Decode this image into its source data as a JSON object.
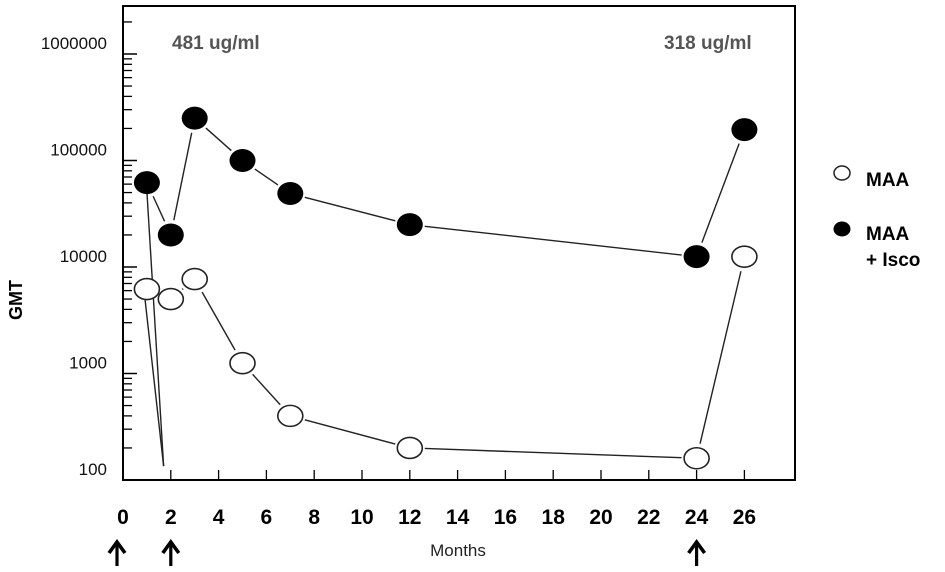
{
  "chart_data": {
    "type": "line",
    "title": "",
    "xlabel": "Months",
    "ylabel": "GMT",
    "yscale": "log",
    "ylim": [
      100,
      1000000
    ],
    "xlim": [
      0,
      28
    ],
    "x_ticks": [
      0,
      2,
      4,
      6,
      8,
      10,
      12,
      14,
      16,
      18,
      20,
      22,
      24,
      26
    ],
    "y_tick_labels": [
      "100",
      "1000",
      "10000",
      "100000",
      "1000000"
    ],
    "grid": false,
    "legend_position": "right",
    "annotations": [
      {
        "text": "481 ug/ml",
        "x": 4,
        "position": "top-left"
      },
      {
        "text": "318 ug/ml",
        "x": 24,
        "position": "top-right"
      }
    ],
    "vaccination_arrows_at_months": [
      0,
      2,
      24
    ],
    "series": [
      {
        "name": "MAA",
        "marker": "open-circle",
        "x": [
          1,
          2,
          3,
          5,
          7,
          12,
          24,
          26
        ],
        "values": [
          6200,
          5000,
          7700,
          1250,
          400,
          200,
          160,
          12500
        ]
      },
      {
        "name": "MAA + Isco",
        "marker": "filled-circle",
        "x": [
          1,
          2,
          3,
          5,
          7,
          12,
          24,
          26
        ],
        "values": [
          62000,
          20000,
          250000,
          100000,
          49000,
          25000,
          12500,
          195000
        ]
      }
    ],
    "drop_lines": [
      {
        "from_series": "MAA",
        "from_x": 1,
        "to_x": 1.7,
        "to_value": 135
      },
      {
        "from_series": "MAA + Isco",
        "from_x": 1,
        "to_x": 1.7,
        "to_value": 135
      }
    ]
  },
  "labels": {
    "y_axis": "GMT",
    "x_axis": "Months",
    "annotation_left": "481 ug/ml",
    "annotation_right": "318 ug/ml",
    "legend_open": "MAA",
    "legend_filled_line1": "MAA",
    "legend_filled_line2": "+ Isco"
  },
  "colors": {
    "line": "#222222",
    "filled_marker": "#000000",
    "open_marker_fill": "#ffffff",
    "annotation": "#555555"
  }
}
